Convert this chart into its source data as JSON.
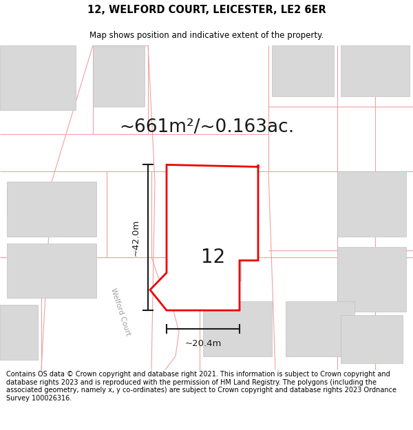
{
  "title": "12, WELFORD COURT, LEICESTER, LE2 6ER",
  "subtitle": "Map shows position and indicative extent of the property.",
  "area_text": "~661m²/~0.163ac.",
  "number_label": "12",
  "dim_width": "~20.4m",
  "dim_height": "~42.0m",
  "road_label": "Welford Court",
  "footer_text": "Contains OS data © Crown copyright and database right 2021. This information is subject to Crown copyright and database rights 2023 and is reproduced with the permission of HM Land Registry. The polygons (including the associated geometry, namely x, y co-ordinates) are subject to Crown copyright and database rights 2023 Ordnance Survey 100026316.",
  "title_fontsize": 10.5,
  "subtitle_fontsize": 8.5,
  "area_fontsize": 19,
  "label_fontsize": 20,
  "dim_fontsize": 9.5,
  "footer_fontsize": 7.0,
  "road_label_fontsize": 7.5,
  "map_bg": "#ffffff",
  "fig_bg": "#ffffff",
  "plot_color": "#ee0000",
  "building_fill": "#d8d8d8",
  "building_edge": "#c0c0c0",
  "pink": "#f0a0a0",
  "dark": "#1a1a1a",
  "road_text_color": "#a0a0a0"
}
